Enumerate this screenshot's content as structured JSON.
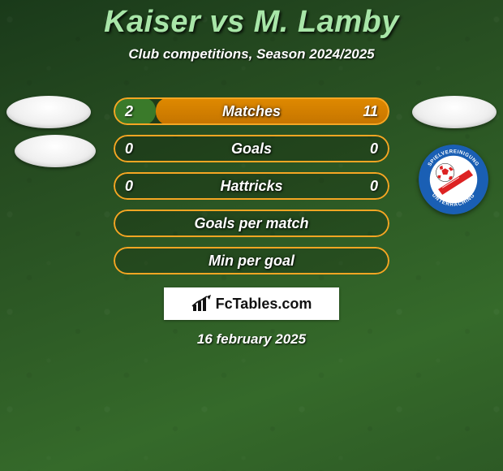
{
  "title": "Kaiser vs M. Lamby",
  "subtitle": "Club competitions, Season 2024/2025",
  "brand": "FcTables.com",
  "date": "16 february 2025",
  "colors": {
    "title": "#a8e6a8",
    "text": "#ffffff",
    "orange_border": "#f5a623",
    "orange_fill": "#e08a00",
    "green_fill": "#3a7a2a",
    "bar_bg": "rgba(0,0,0,0.18)",
    "brand_bg": "#ffffff"
  },
  "avatars": {
    "row0_left": true,
    "row0_right": true,
    "row1_left": true
  },
  "clublogo": {
    "top_text": "SPIELVEREINIGUNG",
    "bottom_text": "UNTERHACHING",
    "outer": "#1a5fb4",
    "ring_text": "#ffffff",
    "inner": "#ffffff",
    "ball": "#d22",
    "wedge": "#d22"
  },
  "rows": [
    {
      "label": "Matches",
      "left_value": "2",
      "right_value": "11",
      "left_share": 0.154,
      "right_share": 0.846,
      "border_color": "#f5a623",
      "bg_color": "rgba(0,0,0,0.18)",
      "left_fill": "#3a7a2a",
      "right_fill": "#e08a00"
    },
    {
      "label": "Goals",
      "left_value": "0",
      "right_value": "0",
      "left_share": 0,
      "right_share": 0,
      "border_color": "#f5a623",
      "bg_color": "rgba(0,0,0,0.18)",
      "left_fill": "#3a7a2a",
      "right_fill": "#e08a00"
    },
    {
      "label": "Hattricks",
      "left_value": "0",
      "right_value": "0",
      "left_share": 0,
      "right_share": 0,
      "border_color": "#f5a623",
      "bg_color": "rgba(0,0,0,0.18)",
      "left_fill": "#3a7a2a",
      "right_fill": "#e08a00"
    },
    {
      "label": "Goals per match",
      "left_value": "",
      "right_value": "",
      "left_share": 0,
      "right_share": 0,
      "border_color": "#f5a623",
      "bg_color": "rgba(0,0,0,0.18)",
      "left_fill": "#3a7a2a",
      "right_fill": "#e08a00"
    },
    {
      "label": "Min per goal",
      "left_value": "",
      "right_value": "",
      "left_share": 0,
      "right_share": 0,
      "border_color": "#f5a623",
      "bg_color": "rgba(0,0,0,0.18)",
      "left_fill": "#3a7a2a",
      "right_fill": "#e08a00"
    }
  ]
}
